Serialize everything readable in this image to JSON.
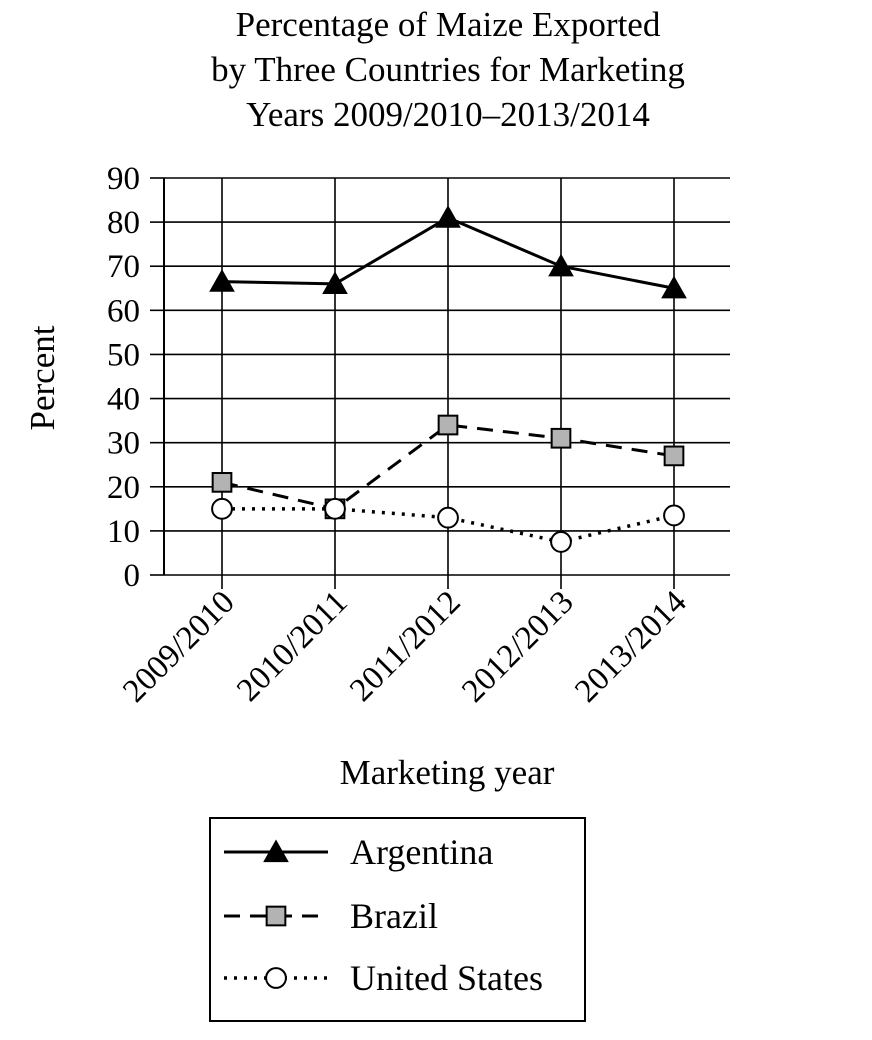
{
  "chart_data": {
    "type": "line",
    "title_lines": [
      "Percentage of Maize Exported",
      "by Three Countries for Marketing",
      "Years 2009/2010–2013/2014"
    ],
    "xlabel": "Marketing year",
    "ylabel": "Percent",
    "categories": [
      "2009/2010",
      "2010/2011",
      "2011/2012",
      "2012/2013",
      "2013/2014"
    ],
    "ylim": [
      0,
      90
    ],
    "yticks": [
      "0",
      "10",
      "20",
      "30",
      "40",
      "50",
      "60",
      "70",
      "80",
      "90"
    ],
    "grid": true,
    "legend_position": "bottom-center",
    "series": [
      {
        "name": "Argentina",
        "values": [
          66.5,
          66,
          81,
          70,
          65
        ],
        "marker": "triangle",
        "line_style": "solid",
        "marker_color": "#000000"
      },
      {
        "name": "Brazil",
        "values": [
          21,
          15,
          34,
          31,
          27
        ],
        "marker": "square",
        "line_style": "dashed",
        "marker_color": "#b3b3b3"
      },
      {
        "name": "United States",
        "values": [
          15,
          15,
          13,
          7.5,
          13.5
        ],
        "marker": "circle",
        "line_style": "dotted",
        "marker_color": "#ffffff"
      }
    ]
  }
}
